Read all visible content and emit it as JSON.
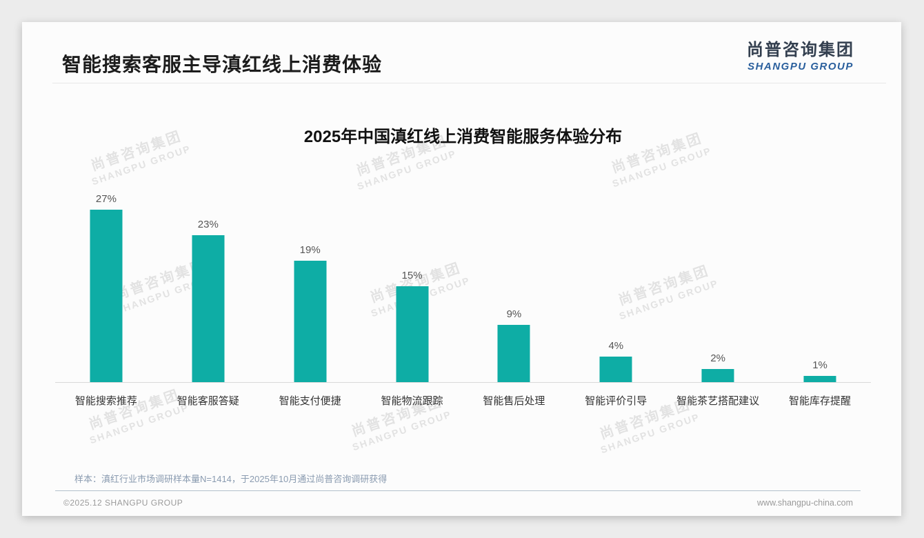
{
  "header": {
    "title": "智能搜索客服主导滇红线上消费体验",
    "logo_cn": "尚普咨询集团",
    "logo_en": "SHANGPU GROUP",
    "logo_en_color": "#2a5f9d"
  },
  "watermark": {
    "cn": "尚普咨询集团",
    "en": "SHANGPU GROUP"
  },
  "chart_data": {
    "type": "bar",
    "title": "2025年中国滇红线上消费智能服务体验分布",
    "categories": [
      "智能搜索推荐",
      "智能客服答疑",
      "智能支付便捷",
      "智能物流跟踪",
      "智能售后处理",
      "智能评价引导",
      "智能茶艺搭配建议",
      "智能库存提醒"
    ],
    "values": [
      27,
      23,
      19,
      15,
      9,
      4,
      2,
      1
    ],
    "value_labels": [
      "27%",
      "23%",
      "19%",
      "15%",
      "9%",
      "4%",
      "2%",
      "1%"
    ],
    "unit": "%",
    "bar_color": "#0eada5",
    "xlabel": "",
    "ylabel": "",
    "ylim": [
      0,
      30
    ],
    "grid": "off",
    "legend": "none",
    "data_labels": "above bars"
  },
  "footer": {
    "note": "样本：滇红行业市场调研样本量N=1414，于2025年10月通过尚普咨询调研获得",
    "copyright": "©2025.12 SHANGPU GROUP",
    "website": "www.shangpu-china.com"
  }
}
